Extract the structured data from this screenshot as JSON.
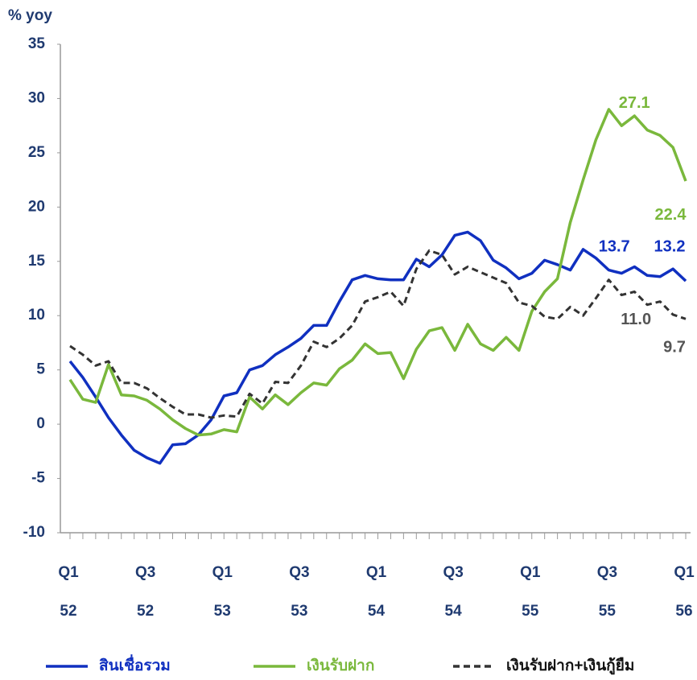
{
  "chart_data": {
    "type": "line",
    "y_label": "% yoy",
    "categories": [
      "Q1",
      null,
      null,
      null,
      null,
      null,
      "Q3",
      null,
      null,
      null,
      null,
      null,
      "Q1",
      null,
      null,
      null,
      null,
      null,
      "Q3",
      null,
      null,
      null,
      null,
      null,
      "Q1",
      null,
      null,
      null,
      null,
      null,
      "Q3",
      null,
      null,
      null,
      null,
      null,
      "Q1",
      null,
      null,
      null,
      null,
      null,
      "Q3",
      null,
      null,
      null,
      null,
      null,
      "Q1"
    ],
    "years": [
      "52",
      null,
      null,
      null,
      null,
      null,
      "52",
      null,
      null,
      null,
      null,
      null,
      "53",
      null,
      null,
      null,
      null,
      null,
      "53",
      null,
      null,
      null,
      null,
      null,
      "54",
      null,
      null,
      null,
      null,
      null,
      "54",
      null,
      null,
      null,
      null,
      null,
      "55",
      null,
      null,
      null,
      null,
      null,
      "55",
      null,
      null,
      null,
      null,
      null,
      "56"
    ],
    "ylim": [
      -10,
      35
    ],
    "yticks": [
      -10,
      -5,
      0,
      5,
      10,
      15,
      20,
      25,
      30,
      35
    ],
    "grid": false,
    "legend": "bottom",
    "series": [
      {
        "name": "สินเชื่อรวม",
        "color": "#1030c0",
        "dashed": false,
        "values": [
          5.8,
          4.3,
          2.5,
          0.6,
          -1.0,
          -2.4,
          -3.1,
          -3.6,
          -1.9,
          -1.8,
          -1.0,
          0.4,
          2.6,
          2.9,
          5.0,
          5.4,
          6.4,
          7.1,
          7.9,
          9.1,
          9.1,
          11.3,
          13.3,
          13.7,
          13.4,
          13.3,
          13.3,
          15.2,
          14.5,
          15.6,
          17.4,
          17.7,
          16.9,
          15.1,
          14.4,
          13.4,
          13.9,
          15.1,
          14.7,
          14.2,
          16.1,
          15.3,
          14.2,
          13.9,
          14.5,
          13.7,
          13.6,
          14.3,
          13.2
        ],
        "value_labels": [
          null,
          null,
          null,
          null,
          null,
          null,
          null,
          null,
          null,
          null,
          null,
          null,
          null,
          null,
          null,
          null,
          null,
          null,
          null,
          null,
          null,
          null,
          null,
          null,
          null,
          null,
          null,
          null,
          null,
          null,
          null,
          null,
          null,
          null,
          null,
          null,
          null,
          null,
          null,
          null,
          null,
          null,
          null,
          null,
          null,
          "13.7",
          null,
          null,
          "13.2"
        ]
      },
      {
        "name": "เงินรับฝาก",
        "color": "#7ab83c",
        "dashed": false,
        "values": [
          4.1,
          2.3,
          2.0,
          5.5,
          2.7,
          2.6,
          2.2,
          1.4,
          0.4,
          -0.4,
          -1.0,
          -0.9,
          -0.5,
          -0.7,
          2.5,
          1.4,
          2.7,
          1.8,
          2.9,
          3.8,
          3.6,
          5.1,
          5.9,
          7.4,
          6.5,
          6.6,
          4.2,
          6.9,
          8.6,
          8.9,
          6.8,
          9.2,
          7.4,
          6.8,
          8.0,
          6.8,
          10.4,
          12.2,
          13.4,
          18.6,
          22.5,
          26.2,
          29.0,
          27.5,
          28.4,
          27.1,
          26.6,
          25.5,
          22.4
        ],
        "value_labels": [
          null,
          null,
          null,
          null,
          null,
          null,
          null,
          null,
          null,
          null,
          null,
          null,
          null,
          null,
          null,
          null,
          null,
          null,
          null,
          null,
          null,
          null,
          null,
          null,
          null,
          null,
          null,
          null,
          null,
          null,
          null,
          null,
          null,
          null,
          null,
          null,
          null,
          null,
          null,
          null,
          null,
          null,
          null,
          null,
          null,
          "27.1",
          null,
          null,
          "22.4"
        ]
      },
      {
        "name": "เงินรับฝาก+เงินกู้ยืม",
        "color": "#333333",
        "dashed": true,
        "values": [
          7.2,
          6.4,
          5.4,
          5.8,
          3.8,
          3.8,
          3.3,
          2.4,
          1.6,
          0.9,
          0.9,
          0.6,
          0.8,
          0.7,
          2.8,
          1.9,
          3.9,
          3.8,
          5.4,
          7.6,
          7.1,
          7.9,
          9.1,
          11.3,
          11.7,
          12.2,
          10.9,
          14.3,
          16.0,
          15.6,
          13.8,
          14.5,
          14.0,
          13.5,
          13.0,
          11.2,
          10.9,
          9.9,
          9.7,
          10.8,
          10.0,
          11.6,
          13.3,
          11.9,
          12.2,
          11.0,
          11.3,
          10.1,
          9.7
        ],
        "value_labels": [
          null,
          null,
          null,
          null,
          null,
          null,
          null,
          null,
          null,
          null,
          null,
          null,
          null,
          null,
          null,
          null,
          null,
          null,
          null,
          null,
          null,
          null,
          null,
          null,
          null,
          null,
          null,
          null,
          null,
          null,
          null,
          null,
          null,
          null,
          null,
          null,
          null,
          null,
          null,
          null,
          null,
          null,
          null,
          null,
          null,
          "11.0",
          null,
          null,
          "9.7"
        ]
      }
    ]
  }
}
